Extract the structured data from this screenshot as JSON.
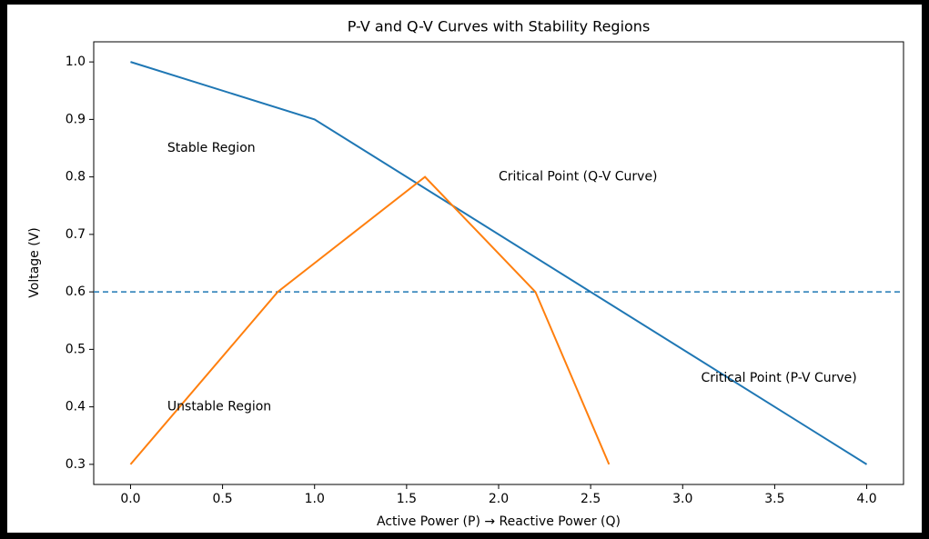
{
  "chart_data": {
    "type": "line",
    "title": "P-V and Q-V Curves with Stability Regions",
    "xlabel": "Active Power (P)  →   Reactive Power (Q)",
    "ylabel": "Voltage (V)",
    "series": [
      {
        "color": "#1f77b4",
        "x": [
          0,
          1,
          4
        ],
        "values": [
          1.0,
          0.9,
          0.3
        ]
      },
      {
        "color": "#ff7f0e",
        "x": [
          0,
          0.8,
          1.6,
          2.2,
          2.6
        ],
        "values": [
          0.3,
          0.6,
          0.8,
          0.6,
          0.3
        ]
      }
    ],
    "hline": {
      "value": 0.6,
      "color": "#1f77b4",
      "style": "dashed"
    },
    "annotations": [
      {
        "text": "Stable Region",
        "x": 0.2,
        "y": 0.85
      },
      {
        "text": "Unstable Region",
        "x": 0.2,
        "y": 0.4
      },
      {
        "text": "Critical Point (Q-V Curve)",
        "x": 2.0,
        "y": 0.8
      },
      {
        "text": "Critical Point (P-V Curve)",
        "x": 3.1,
        "y": 0.45
      }
    ],
    "xlim": [
      -0.2,
      4.2
    ],
    "ylim": [
      0.265,
      1.035
    ],
    "xticks": [
      {
        "value": 0,
        "label": "0.0"
      },
      0.5,
      {
        "value": 1,
        "label": "1.0"
      },
      1.5,
      {
        "value": 2,
        "label": "2.0"
      },
      2.5,
      {
        "value": 3,
        "label": "3.0"
      },
      3.5,
      {
        "value": 4,
        "label": "4.0"
      }
    ],
    "yticks": [
      0.3,
      0.4,
      0.5,
      0.6,
      0.7,
      0.8,
      0.9,
      {
        "value": 1,
        "label": "1.0"
      }
    ]
  }
}
